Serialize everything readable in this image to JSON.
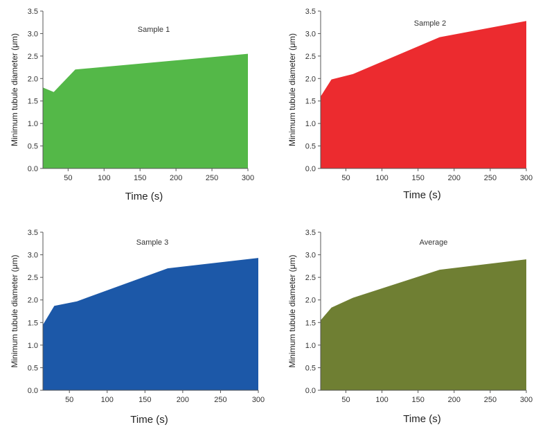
{
  "figure": {
    "panels_meta": [
      "Sample 1",
      "Sample 2",
      "Sample 3",
      "Average"
    ]
  },
  "chart_data": [
    {
      "type": "area",
      "title": "Sample 1",
      "xlabel": "Time (s)",
      "ylabel": "Minimum tubule diameter (μm)",
      "xlim": [
        15,
        300
      ],
      "ylim": [
        0,
        3.5
      ],
      "x_ticks": [
        50,
        100,
        150,
        200,
        250,
        300
      ],
      "y_ticks": [
        "0.0",
        "0.5",
        "1.0",
        "1.5",
        "2.0",
        "2.5",
        "3.0",
        "3.5"
      ],
      "color": "#54b848",
      "grid": false,
      "series": [
        {
          "x": [
            15,
            30,
            60,
            300
          ],
          "values": [
            1.8,
            1.7,
            2.2,
            2.55
          ]
        }
      ]
    },
    {
      "type": "area",
      "title": "Sample 2",
      "xlabel": "Time (s)",
      "ylabel": "Minimum tubule diameter (μm)",
      "xlim": [
        15,
        300
      ],
      "ylim": [
        0,
        3.5
      ],
      "x_ticks": [
        50,
        100,
        150,
        200,
        250,
        300
      ],
      "y_ticks": [
        "0.0",
        "0.5",
        "1.0",
        "1.5",
        "2.0",
        "2.5",
        "3.0",
        "3.5"
      ],
      "color": "#ec2b2f",
      "grid": false,
      "series": [
        {
          "x": [
            15,
            30,
            60,
            180,
            300
          ],
          "values": [
            1.6,
            1.98,
            2.1,
            2.92,
            3.28
          ]
        }
      ]
    },
    {
      "type": "area",
      "title": "Sample 3",
      "xlabel": "Time (s)",
      "ylabel": "Minimum tubule diameter (μm)",
      "xlim": [
        15,
        300
      ],
      "ylim": [
        0,
        3.5
      ],
      "x_ticks": [
        50,
        100,
        150,
        200,
        250,
        300
      ],
      "y_ticks": [
        "0.0",
        "0.5",
        "1.0",
        "1.5",
        "2.0",
        "2.5",
        "3.0",
        "3.5"
      ],
      "color": "#1c58a8",
      "grid": false,
      "series": [
        {
          "x": [
            15,
            30,
            60,
            180,
            300
          ],
          "values": [
            1.45,
            1.87,
            1.97,
            2.7,
            2.93
          ]
        }
      ]
    },
    {
      "type": "area",
      "title": "Average",
      "xlabel": "Time (s)",
      "ylabel": "Minimum tubule diameter (μm)",
      "xlim": [
        15,
        300
      ],
      "ylim": [
        0,
        3.5
      ],
      "x_ticks": [
        50,
        100,
        150,
        200,
        250,
        300
      ],
      "y_ticks": [
        "0.0",
        "0.5",
        "1.0",
        "1.5",
        "2.0",
        "2.5",
        "3.0",
        "3.5"
      ],
      "color": "#6f7f33",
      "grid": false,
      "series": [
        {
          "x": [
            15,
            30,
            60,
            180,
            300
          ],
          "values": [
            1.55,
            1.83,
            2.05,
            2.67,
            2.9
          ]
        }
      ]
    }
  ]
}
